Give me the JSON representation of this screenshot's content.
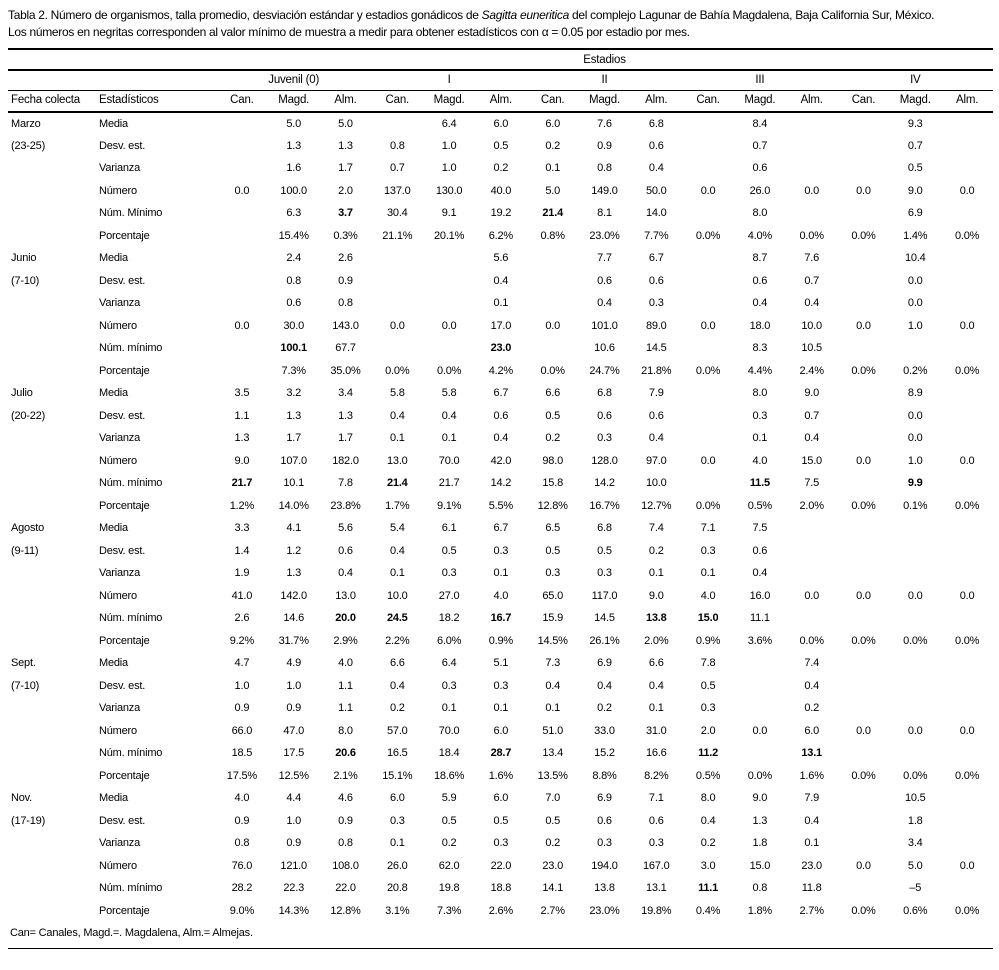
{
  "colors": {
    "text": "#000000",
    "background": "#ffffff",
    "rule": "#000000"
  },
  "page": {
    "title_prefix": "Tabla 2. Número de organismos, talla promedio, desviación estándar y estadios gonádicos de ",
    "title_species": "Sagitta euneritica",
    "title_suffix": " del complejo Lagunar de Bahía Magdalena, Baja California Sur, México.",
    "title_line2": "Los números  en negritas corresponden al valor mínimo de muestra a medir para obtener estadísticos con α = 0.05 por estadio por mes.",
    "footnote": "Can= Canales, Magd.=. Magdalena, Alm.= Almejas."
  },
  "table": {
    "span_header": "Estadios",
    "corner_headers": [
      "Fecha colecta",
      "Estadísticos"
    ],
    "stage_groups": [
      "Juvenil (0)",
      "I",
      "II",
      "III",
      "IV"
    ],
    "site_headers": [
      "Can.",
      "Magd.",
      "Alm."
    ],
    "sections": [
      {
        "month": "Marzo",
        "dates": "(23-25)",
        "rows": [
          {
            "label": "Media",
            "values": [
              "",
              "5.0",
              "5.0",
              "",
              "6.4",
              "6.0",
              "6.0",
              "7.6",
              "6.8",
              "",
              "8.4",
              "",
              "",
              "9.3",
              ""
            ],
            "bold": []
          },
          {
            "label": "Desv. est.",
            "values": [
              "",
              "1.3",
              "1.3",
              "0.8",
              "1.0",
              "0.5",
              "0.2",
              "0.9",
              "0.6",
              "",
              "0.7",
              "",
              "",
              "0.7",
              ""
            ],
            "bold": []
          },
          {
            "label": "Varianza",
            "values": [
              "",
              "1.6",
              "1.7",
              "0.7",
              "1.0",
              "0.2",
              "0.1",
              "0.8",
              "0.4",
              "",
              "0.6",
              "",
              "",
              "0.5",
              ""
            ],
            "bold": []
          },
          {
            "label": "Número",
            "values": [
              "0.0",
              "100.0",
              "2.0",
              "137.0",
              "130.0",
              "40.0",
              "5.0",
              "149.0",
              "50.0",
              "0.0",
              "26.0",
              "0.0",
              "0.0",
              "9.0",
              "0.0"
            ],
            "bold": []
          },
          {
            "label": "Núm. Mínimo",
            "values": [
              "",
              "6.3",
              "3.7",
              "30.4",
              "9.1",
              "19.2",
              "21.4",
              "8.1",
              "14.0",
              "",
              "8.0",
              "",
              "",
              "6.9",
              ""
            ],
            "bold": [
              2,
              6
            ]
          },
          {
            "label": "Porcentaje",
            "values": [
              "",
              "15.4%",
              "0.3%",
              "21.1%",
              "20.1%",
              "6.2%",
              "0.8%",
              "23.0%",
              "7.7%",
              "0.0%",
              "4.0%",
              "0.0%",
              "0.0%",
              "1.4%",
              "0.0%"
            ],
            "bold": []
          }
        ]
      },
      {
        "month": "Junio",
        "dates": "(7-10)",
        "rows": [
          {
            "label": "Media",
            "values": [
              "",
              "2.4",
              "2.6",
              "",
              "",
              "5.6",
              "",
              "7.7",
              "6.7",
              "",
              "8.7",
              "7.6",
              "",
              "10.4",
              ""
            ],
            "bold": []
          },
          {
            "label": "Desv. est.",
            "values": [
              "",
              "0.8",
              "0.9",
              "",
              "",
              "0.4",
              "",
              "0.6",
              "0.6",
              "",
              "0.6",
              "0.7",
              "",
              "0.0",
              ""
            ],
            "bold": []
          },
          {
            "label": "Varianza",
            "values": [
              "",
              "0.6",
              "0.8",
              "",
              "",
              "0.1",
              "",
              "0.4",
              "0.3",
              "",
              "0.4",
              "0.4",
              "",
              "0.0",
              ""
            ],
            "bold": []
          },
          {
            "label": "Número",
            "values": [
              "0.0",
              "30.0",
              "143.0",
              "0.0",
              "0.0",
              "17.0",
              "0.0",
              "101.0",
              "89.0",
              "0.0",
              "18.0",
              "10.0",
              "0.0",
              "1.0",
              "0.0"
            ],
            "bold": []
          },
          {
            "label": "Núm. mínimo",
            "values": [
              "",
              "100.1",
              "67.7",
              "",
              "",
              "23.0",
              "",
              "10.6",
              "14.5",
              "",
              "8.3",
              "10.5",
              "",
              "",
              ""
            ],
            "bold": [
              1,
              5
            ]
          },
          {
            "label": "Porcentaje",
            "values": [
              "",
              "7.3%",
              "35.0%",
              "0.0%",
              "0.0%",
              "4.2%",
              "0.0%",
              "24.7%",
              "21.8%",
              "0.0%",
              "4.4%",
              "2.4%",
              "0.0%",
              "0.2%",
              "0.0%"
            ],
            "bold": []
          }
        ]
      },
      {
        "month": "Julio",
        "dates": "(20-22)",
        "rows": [
          {
            "label": "Media",
            "values": [
              "3.5",
              "3.2",
              "3.4",
              "5.8",
              "5.8",
              "6.7",
              "6.6",
              "6.8",
              "7.9",
              "",
              "8.0",
              "9.0",
              "",
              "8.9",
              ""
            ],
            "bold": []
          },
          {
            "label": "Desv. est.",
            "values": [
              "1.1",
              "1.3",
              "1.3",
              "0.4",
              "0.4",
              "0.6",
              "0.5",
              "0.6",
              "0.6",
              "",
              "0.3",
              "0.7",
              "",
              "0.0",
              ""
            ],
            "bold": []
          },
          {
            "label": "Varianza",
            "values": [
              "1.3",
              "1.7",
              "1.7",
              "0.1",
              "0.1",
              "0.4",
              "0.2",
              "0.3",
              "0.4",
              "",
              "0.1",
              "0.4",
              "",
              "0.0",
              ""
            ],
            "bold": []
          },
          {
            "label": "Número",
            "values": [
              "9.0",
              "107.0",
              "182.0",
              "13.0",
              "70.0",
              "42.0",
              "98.0",
              "128.0",
              "97.0",
              "0.0",
              "4.0",
              "15.0",
              "0.0",
              "1.0",
              "0.0"
            ],
            "bold": []
          },
          {
            "label": "Núm. mínimo",
            "values": [
              "21.7",
              "10.1",
              "7.8",
              "21.4",
              "21.7",
              "14.2",
              "15.8",
              "14.2",
              "10.0",
              "",
              "11.5",
              "7.5",
              "",
              "9.9",
              ""
            ],
            "bold": [
              0,
              3,
              10,
              13
            ]
          },
          {
            "label": "Porcentaje",
            "values": [
              "1.2%",
              "14.0%",
              "23.8%",
              "1.7%",
              "9.1%",
              "5.5%",
              "12.8%",
              "16.7%",
              "12.7%",
              "0.0%",
              "0.5%",
              "2.0%",
              "0.0%",
              "0.1%",
              "0.0%"
            ],
            "bold": []
          }
        ]
      },
      {
        "month": "Agosto",
        "dates": "(9-11)",
        "rows": [
          {
            "label": "Media",
            "values": [
              "3.3",
              "4.1",
              "5.6",
              "5.4",
              "6.1",
              "6.7",
              "6.5",
              "6.8",
              "7.4",
              "7.1",
              "7.5",
              "",
              "",
              "",
              ""
            ],
            "bold": []
          },
          {
            "label": "Desv. est.",
            "values": [
              "1.4",
              "1.2",
              "0.6",
              "0.4",
              "0.5",
              "0.3",
              "0.5",
              "0.5",
              "0.2",
              "0.3",
              "0.6",
              "",
              "",
              "",
              ""
            ],
            "bold": []
          },
          {
            "label": "Varianza",
            "values": [
              "1.9",
              "1.3",
              "0.4",
              "0.1",
              "0.3",
              "0.1",
              "0.3",
              "0.3",
              "0.1",
              "0.1",
              "0.4",
              "",
              "",
              "",
              ""
            ],
            "bold": []
          },
          {
            "label": "Número",
            "values": [
              "41.0",
              "142.0",
              "13.0",
              "10.0",
              "27.0",
              "4.0",
              "65.0",
              "117.0",
              "9.0",
              "4.0",
              "16.0",
              "0.0",
              "0.0",
              "0.0",
              "0.0"
            ],
            "bold": []
          },
          {
            "label": "Núm. mínimo",
            "values": [
              "2.6",
              "14.6",
              "20.0",
              "24.5",
              "18.2",
              "16.7",
              "15.9",
              "14.5",
              "13.8",
              "15.0",
              "11.1",
              "",
              "",
              "",
              ""
            ],
            "bold": [
              2,
              3,
              5,
              8,
              9
            ]
          },
          {
            "label": "Porcentaje",
            "values": [
              "9.2%",
              "31.7%",
              "2.9%",
              "2.2%",
              "6.0%",
              "0.9%",
              "14.5%",
              "26.1%",
              "2.0%",
              "0.9%",
              "3.6%",
              "0.0%",
              "0.0%",
              "0.0%",
              "0.0%"
            ],
            "bold": []
          }
        ]
      },
      {
        "month": "Sept.",
        "dates": "(7-10)",
        "rows": [
          {
            "label": "Media",
            "values": [
              "4.7",
              "4.9",
              "4.0",
              "6.6",
              "6.4",
              "5.1",
              "7.3",
              "6.9",
              "6.6",
              "7.8",
              "",
              "7.4",
              "",
              "",
              ""
            ],
            "bold": []
          },
          {
            "label": "Desv. est.",
            "values": [
              "1.0",
              "1.0",
              "1.1",
              "0.4",
              "0.3",
              "0.3",
              "0.4",
              "0.4",
              "0.4",
              "0.5",
              "",
              "0.4",
              "",
              "",
              ""
            ],
            "bold": []
          },
          {
            "label": "Varianza",
            "values": [
              "0.9",
              "0.9",
              "1.1",
              "0.2",
              "0.1",
              "0.1",
              "0.1",
              "0.2",
              "0.1",
              "0.3",
              "",
              "0.2",
              "",
              "",
              ""
            ],
            "bold": []
          },
          {
            "label": "Número",
            "values": [
              "66.0",
              "47.0",
              "8.0",
              "57.0",
              "70.0",
              "6.0",
              "51.0",
              "33.0",
              "31.0",
              "2.0",
              "0.0",
              "6.0",
              "0.0",
              "0.0",
              "0.0"
            ],
            "bold": []
          },
          {
            "label": "Núm. mínimo",
            "values": [
              "18.5",
              "17.5",
              "20.6",
              "16.5",
              "18.4",
              "28.7",
              "13.4",
              "15.2",
              "16.6",
              "11.2",
              "",
              "13.1",
              "",
              "",
              ""
            ],
            "bold": [
              2,
              5,
              9,
              11
            ]
          },
          {
            "label": "Porcentaje",
            "values": [
              "17.5%",
              "12.5%",
              "2.1%",
              "15.1%",
              "18.6%",
              "1.6%",
              "13.5%",
              "8.8%",
              "8.2%",
              "0.5%",
              "0.0%",
              "1.6%",
              "0.0%",
              "0.0%",
              "0.0%"
            ],
            "bold": []
          }
        ]
      },
      {
        "month": "Nov.",
        "dates": "(17-19)",
        "rows": [
          {
            "label": "Media",
            "values": [
              "4.0",
              "4.4",
              "4.6",
              "6.0",
              "5.9",
              "6.0",
              "7.0",
              "6.9",
              "7.1",
              "8.0",
              "9.0",
              "7.9",
              "",
              "10.5",
              ""
            ],
            "bold": []
          },
          {
            "label": "Desv. est.",
            "values": [
              "0.9",
              "1.0",
              "0.9",
              "0.3",
              "0.5",
              "0.5",
              "0.5",
              "0.6",
              "0.6",
              "0.4",
              "1.3",
              "0.4",
              "",
              "1.8",
              ""
            ],
            "bold": []
          },
          {
            "label": "Varianza",
            "values": [
              "0.8",
              "0.9",
              "0.8",
              "0.1",
              "0.2",
              "0.3",
              "0.2",
              "0.3",
              "0.3",
              "0.2",
              "1.8",
              "0.1",
              "",
              "3.4",
              ""
            ],
            "bold": []
          },
          {
            "label": "Número",
            "values": [
              "76.0",
              "121.0",
              "108.0",
              "26.0",
              "62.0",
              "22.0",
              "23.0",
              "194.0",
              "167.0",
              "3.0",
              "15.0",
              "23.0",
              "0.0",
              "5.0",
              "0.0"
            ],
            "bold": []
          },
          {
            "label": "Núm. mínimo",
            "values": [
              "28.2",
              "22.3",
              "22.0",
              "20.8",
              "19.8",
              "18.8",
              "14.1",
              "13.8",
              "13.1",
              "11.1",
              "0.8",
              "11.8",
              "",
              "–5",
              ""
            ],
            "bold": [
              9
            ]
          },
          {
            "label": "Porcentaje",
            "values": [
              "9.0%",
              "14.3%",
              "12.8%",
              "3.1%",
              "7.3%",
              "2.6%",
              "2.7%",
              "23.0%",
              "19.8%",
              "0.4%",
              "1.8%",
              "2.7%",
              "0.0%",
              "0.6%",
              "0.0%"
            ],
            "bold": []
          }
        ]
      }
    ]
  }
}
